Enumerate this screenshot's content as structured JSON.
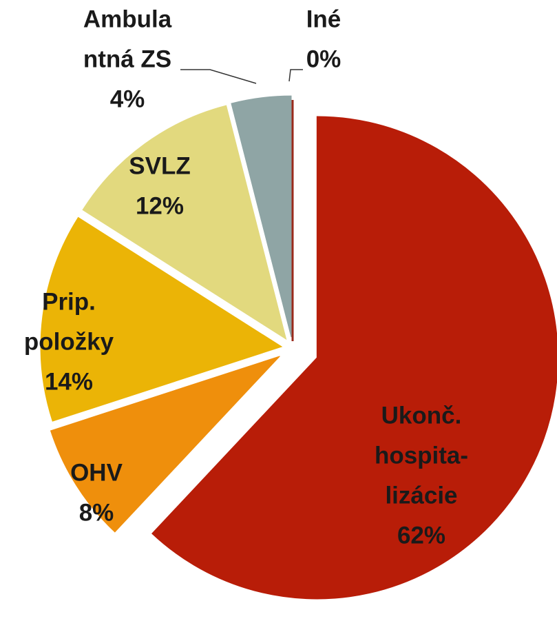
{
  "chart_data": {
    "type": "pie",
    "categories": [
      [
        "Ukonč.",
        "hospita-",
        "lizácie"
      ],
      [
        "OHV"
      ],
      [
        "Prip.",
        "položky"
      ],
      [
        "SVLZ"
      ],
      [
        "Ambula",
        "ntná ZS"
      ],
      [
        "Iné"
      ]
    ],
    "values": [
      62,
      8,
      14,
      12,
      4,
      0
    ],
    "value_labels": [
      "62%",
      "8%",
      "14%",
      "12%",
      "4%",
      "0%"
    ],
    "colors": [
      "#b81d08",
      "#ef8f0c",
      "#ebb406",
      "#e2d97e",
      "#8fa5a5",
      "#9a2a1c"
    ]
  }
}
